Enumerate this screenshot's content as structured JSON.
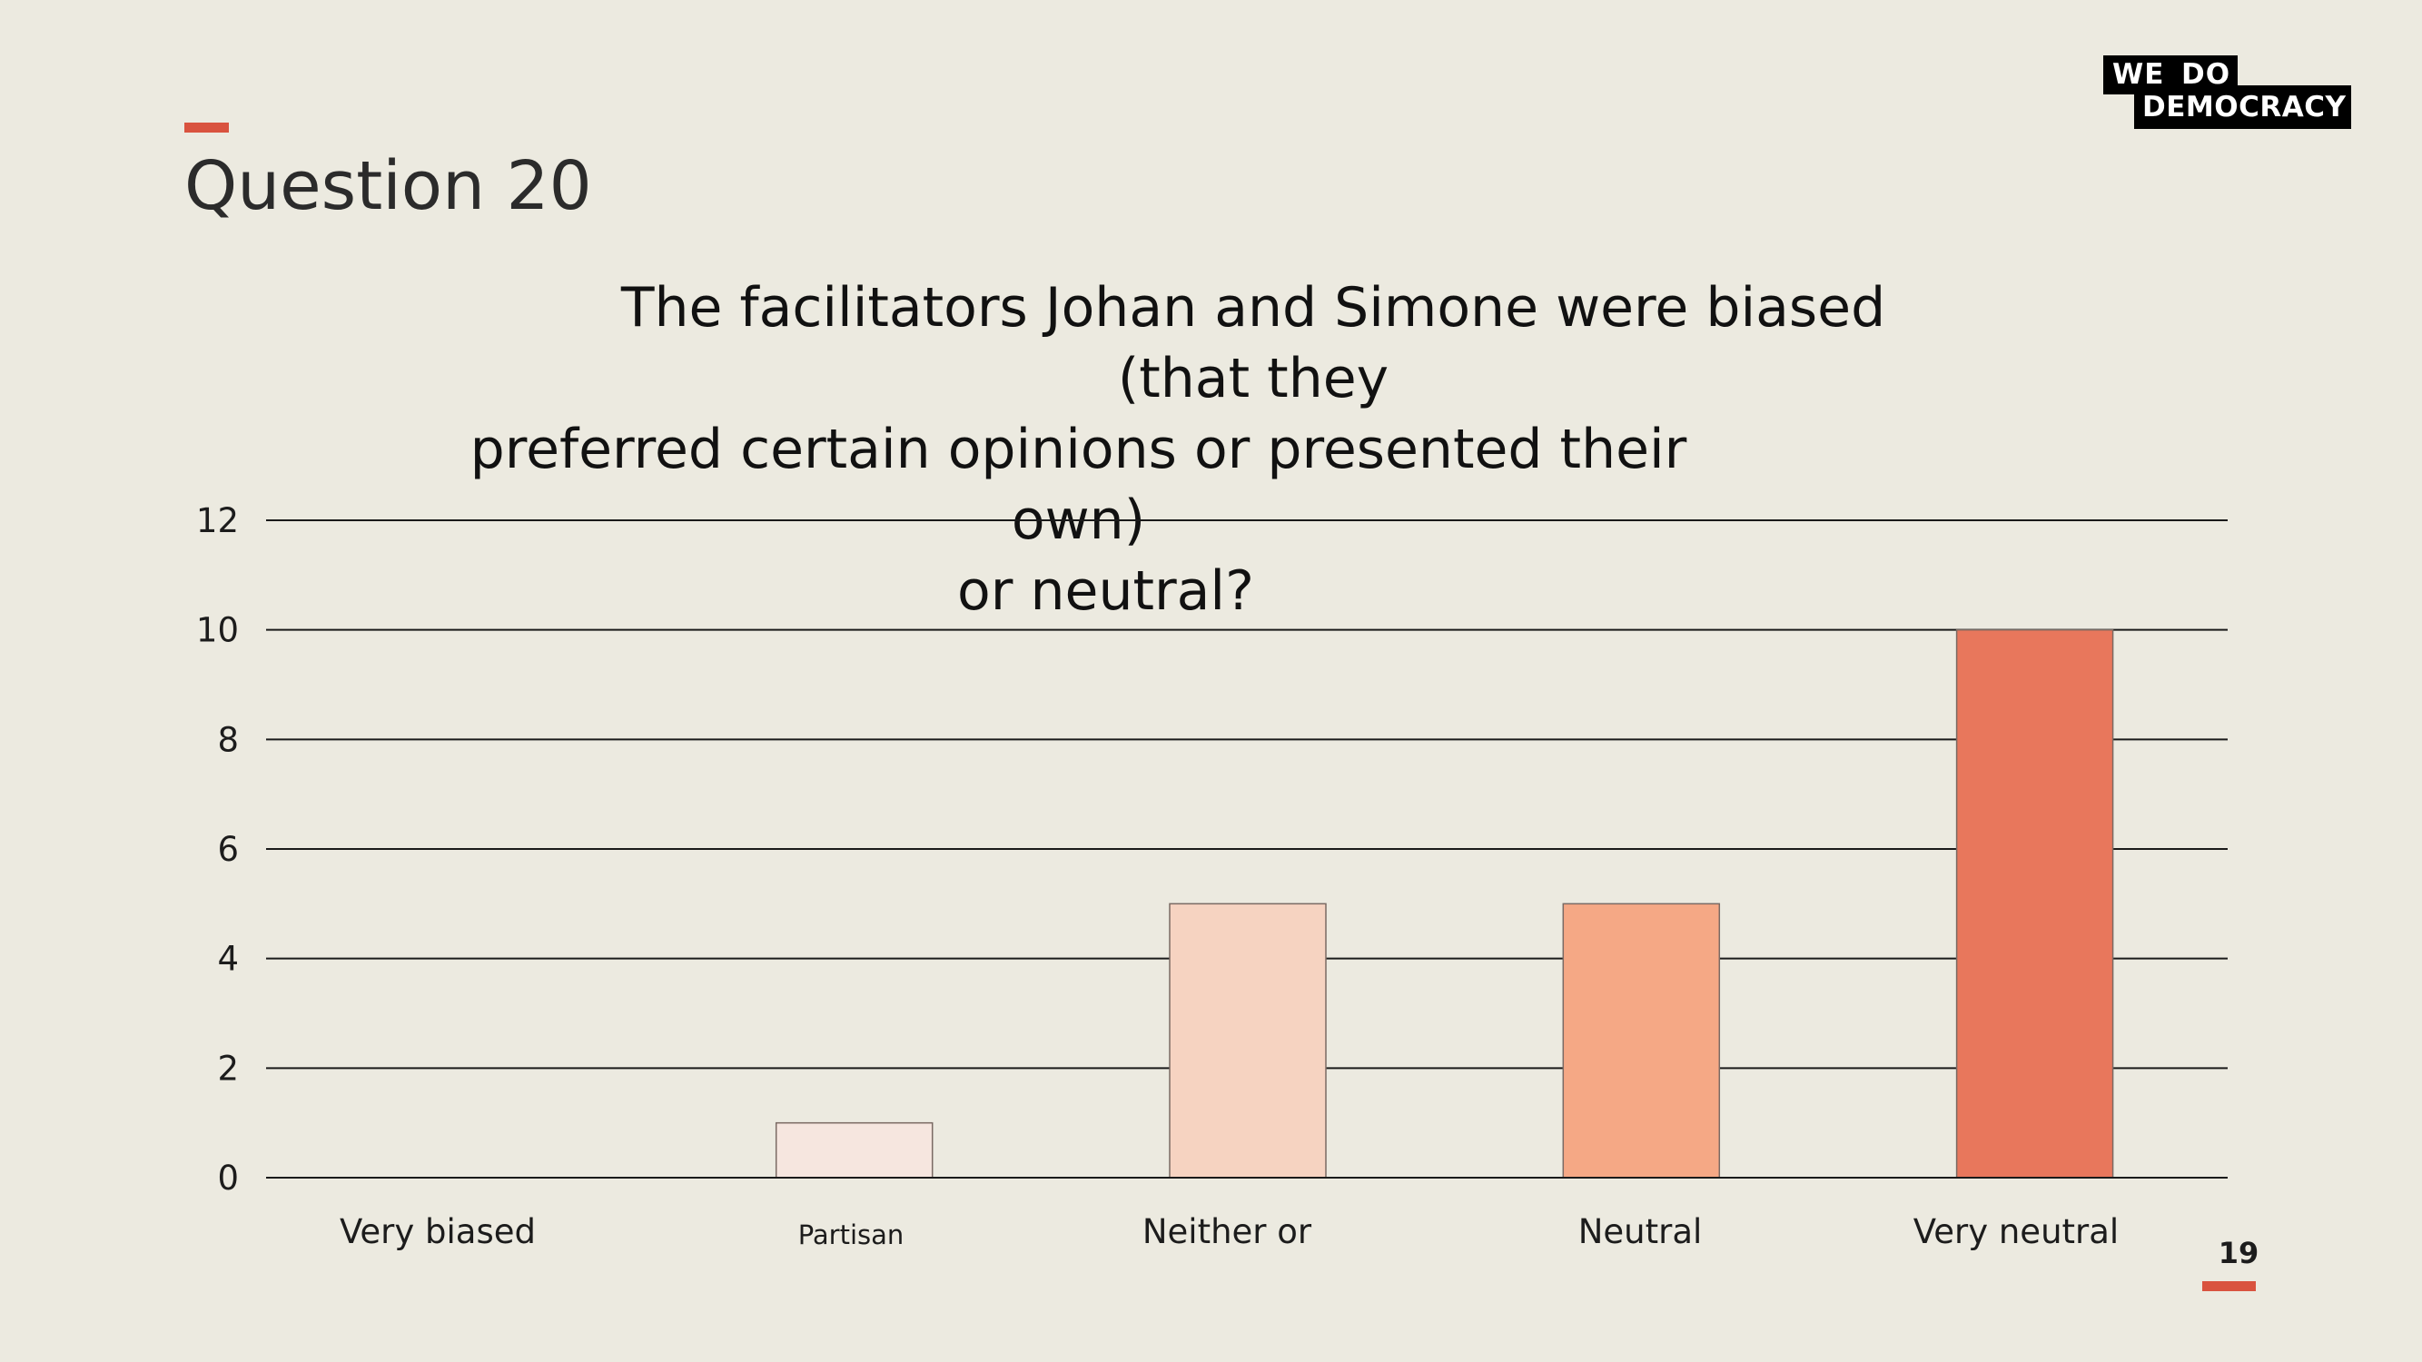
{
  "slide": {
    "title": "Question 20",
    "question_lines": [
      "The facilitators Johan and Simone were biased (that they",
      "preferred certain opinions or presented their own)",
      "or neutral?"
    ],
    "page_number": "19",
    "accent_color": "#D9533F"
  },
  "logo": {
    "line1_word1": "WE",
    "line1_word2": "DO",
    "line2": "DEMOCRACY"
  },
  "chart_data": {
    "type": "bar",
    "title": "The facilitators Johan and Simone were biased (that they preferred certain opinions or presented their own) or neutral?",
    "categories": [
      "Very biased",
      "Partisan",
      "Neither or",
      "Neutral",
      "Very neutral"
    ],
    "values": [
      0,
      1,
      5,
      5,
      10
    ],
    "colors": [
      "#F6E6DF",
      "#F6E6DF",
      "#F6D3C1",
      "#F5A885",
      "#E8775C"
    ],
    "ylim": [
      0,
      12
    ],
    "yticks": [
      "0",
      "2",
      "4",
      "6",
      "8",
      "10",
      "12"
    ],
    "grid": true,
    "legend": "none",
    "xlabel": "",
    "ylabel": ""
  }
}
